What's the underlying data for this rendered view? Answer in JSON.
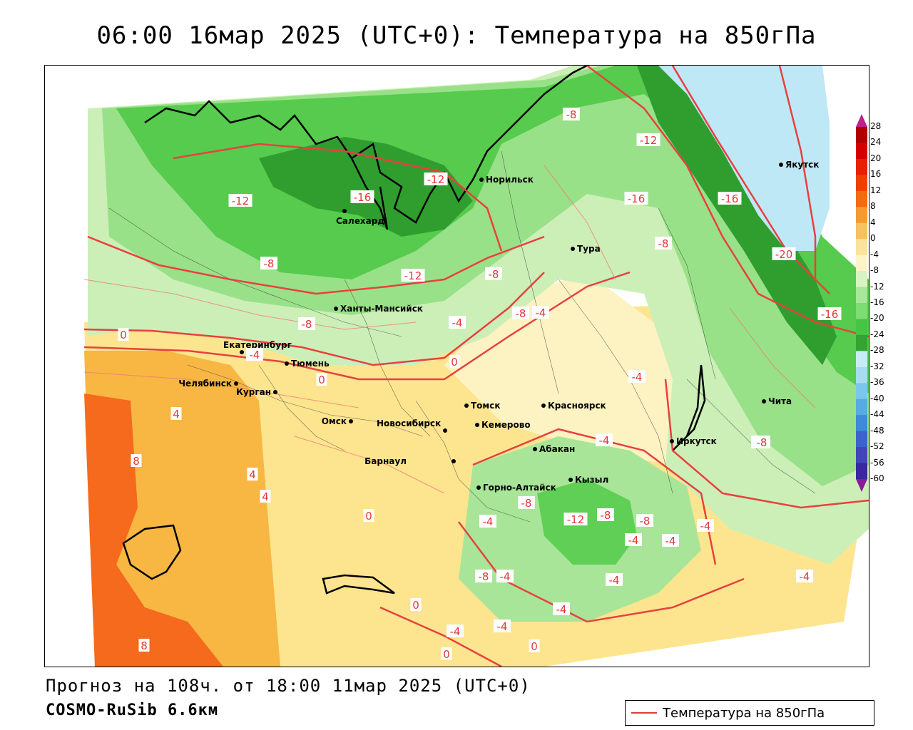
{
  "title": "06:00 16мар 2025 (UTC+0): Температура на 850гПа",
  "footer": {
    "forecast": "Прогноз на 108ч. от 18:00 11мар 2025 (UTC+0)",
    "model": "COSMO-RuSib 6.6км"
  },
  "legend": {
    "label": "Температура на 850гПа",
    "color": "#e23a3a"
  },
  "colorbar": {
    "labels": [
      "28",
      "24",
      "20",
      "16",
      "12",
      "8",
      "4",
      "0",
      "-4",
      "-8",
      "-12",
      "-16",
      "-20",
      "-24",
      "-28",
      "-32",
      "-36",
      "-40",
      "-44",
      "-48",
      "-52",
      "-56",
      "-60"
    ],
    "colors": [
      "#b00000",
      "#d40000",
      "#e82000",
      "#f04000",
      "#f46a10",
      "#f59a30",
      "#f7c060",
      "#fbe39a",
      "#fdf4c8",
      "#d9f3c2",
      "#a8e79a",
      "#7ddc74",
      "#46c443",
      "#33a333",
      "#c8ecf6",
      "#a7dbf2",
      "#7cc6ec",
      "#57abe3",
      "#3c8ad8",
      "#3c62cc",
      "#4245b8",
      "#3a26a0",
      "#2a0f80",
      "#8a1a9a"
    ]
  },
  "cities": [
    {
      "name": "Салехард"
    },
    {
      "name": "Норильск"
    },
    {
      "name": "Якутск"
    },
    {
      "name": "Тура"
    },
    {
      "name": "Ханты-Мансийск"
    },
    {
      "name": "Екатеринбург"
    },
    {
      "name": "Тюмень"
    },
    {
      "name": "Челябинск"
    },
    {
      "name": "Курган"
    },
    {
      "name": "Омск"
    },
    {
      "name": "Новосибирск"
    },
    {
      "name": "Томск"
    },
    {
      "name": "Кемерово"
    },
    {
      "name": "Красноярск"
    },
    {
      "name": "Абакан"
    },
    {
      "name": "Барнаул"
    },
    {
      "name": "Горно-Алтайск"
    },
    {
      "name": "Кызыл"
    },
    {
      "name": "Иркутск"
    },
    {
      "name": "Чита"
    }
  ],
  "isotherm_labels": [
    "-8",
    "-12",
    "-16",
    "-12",
    "-16",
    "-8",
    "-12",
    "-16",
    "-20",
    "-8",
    "-8",
    "-12",
    "-8",
    "-16",
    "0",
    "-4",
    "-8",
    "-4",
    "0",
    "-4",
    "0",
    "-4",
    "-4",
    "4",
    "8",
    "4",
    "4",
    "0",
    "-8",
    "-4",
    "-12",
    "-8",
    "-8",
    "-8",
    "-4",
    "-4",
    "-4",
    "-4",
    "-4",
    "-4",
    "-4",
    "-4",
    "0",
    "-4",
    "-4",
    "0",
    "8",
    "0",
    "-8"
  ]
}
